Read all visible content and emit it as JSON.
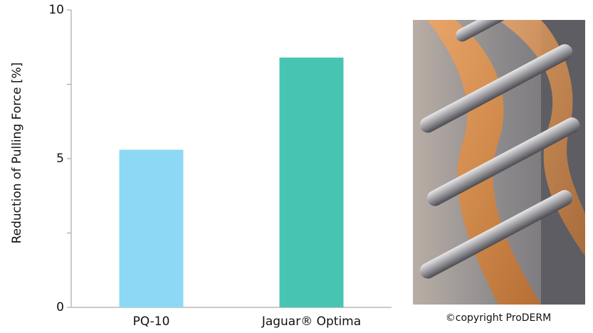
{
  "chart_data": {
    "type": "bar",
    "y_label": "Reduction of Pulling Force [%]",
    "categories": [
      "PQ-10",
      "Jaguar® Optima"
    ],
    "values": [
      5.3,
      8.4
    ],
    "colors": [
      "#8dd8f5",
      "#48c5b2"
    ],
    "ylim": [
      0,
      10
    ],
    "yticks": [
      0,
      5,
      10
    ],
    "minor_yticks": [
      2.5,
      7.5
    ],
    "grid": false
  },
  "photo": {
    "caption": "©copyright ProDERM"
  }
}
